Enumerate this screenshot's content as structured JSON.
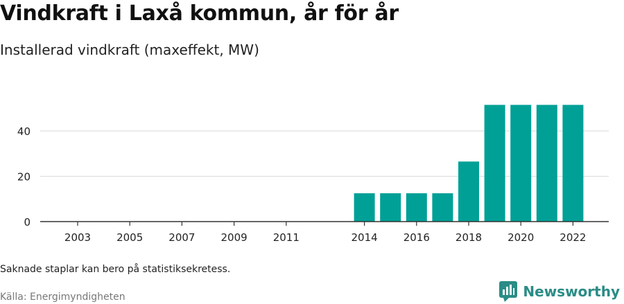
{
  "chart_data": {
    "type": "bar",
    "title": "Vindkraft i Laxå kommun, år för år",
    "subtitle": "Installerad vindkraft (maxeffekt, MW)",
    "categories": [
      "2002",
      "2003",
      "2004",
      "2005",
      "2006",
      "2007",
      "2008",
      "2009",
      "2010",
      "2011",
      "2012",
      "2013",
      "2014",
      "2015",
      "2016",
      "2017",
      "2018",
      "2019",
      "2020",
      "2021",
      "2022"
    ],
    "values": [
      0,
      0,
      0,
      0,
      0,
      0,
      0,
      0,
      0,
      0,
      null,
      null,
      12.5,
      12.5,
      12.5,
      12.5,
      26.5,
      51.5,
      51.5,
      51.5,
      51.5
    ],
    "xtick_labels": [
      "2003",
      "2005",
      "2007",
      "2009",
      "2011",
      "2014",
      "2016",
      "2018",
      "2020",
      "2022"
    ],
    "yticks": [
      0,
      20,
      40
    ],
    "ylim": [
      0,
      55
    ],
    "grid": true,
    "xlabel": "",
    "ylabel": "",
    "bar_color": "#00a096"
  },
  "footer": {
    "note": "Saknade staplar kan bero på statistiksekretess.",
    "source": "Källa: Energimyndigheten",
    "brand": "Newsworthy",
    "brand_color": "#2a8c86"
  }
}
